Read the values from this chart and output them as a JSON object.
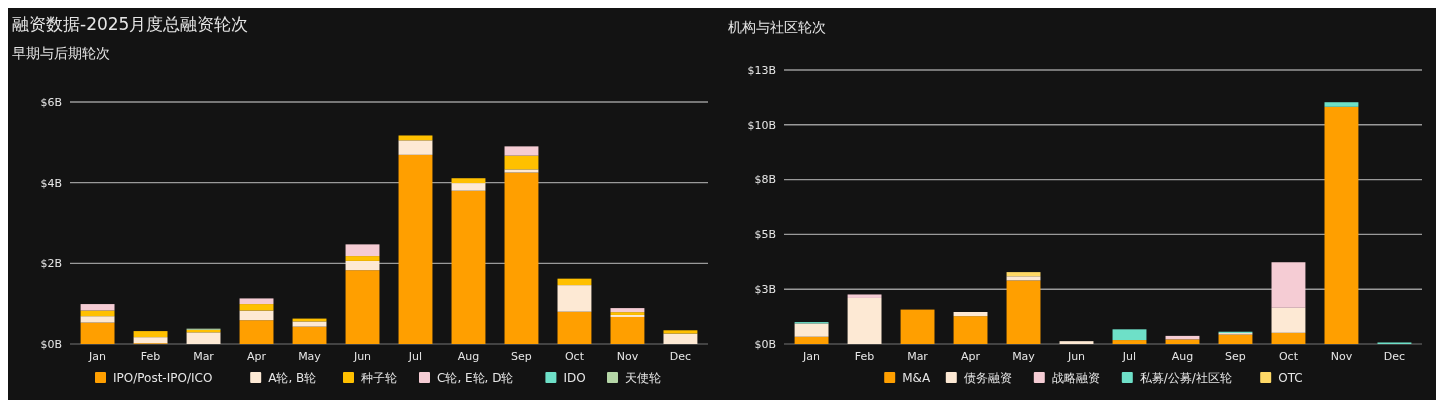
{
  "chart_data": [
    {
      "type": "bar",
      "title": "融资数据-2025月度总融资轮次",
      "subtitle": "早期与后期轮次",
      "categories": [
        "Jan",
        "Feb",
        "Mar",
        "Apr",
        "May",
        "Jun",
        "Jul",
        "Aug",
        "Sep",
        "Oct",
        "Nov",
        "Dec"
      ],
      "stacked": true,
      "ylim": [
        0,
        6
      ],
      "yticks": [
        {
          "value": 0,
          "label": "$0B"
        },
        {
          "value": 2,
          "label": "$2B"
        },
        {
          "value": 4,
          "label": "$4B"
        },
        {
          "value": 6,
          "label": "$6B"
        }
      ],
      "grid": "y",
      "legend": "bottom",
      "series": [
        {
          "name": "IPO/Post-IPO/ICO",
          "color": "#ff9f00",
          "values": [
            0.53,
            0.02,
            0,
            0.59,
            0.43,
            1.83,
            4.69,
            3.8,
            4.25,
            0.8,
            0.67,
            0
          ]
        },
        {
          "name": "A轮, B轮",
          "color": "#fde9d4",
          "values": [
            0.16,
            0.15,
            0.29,
            0.24,
            0.13,
            0.23,
            0.36,
            0.19,
            0.08,
            0.66,
            0.05,
            0.26
          ]
        },
        {
          "name": "种子轮",
          "color": "#ffc000",
          "values": [
            0.14,
            0.15,
            0.06,
            0.16,
            0.07,
            0.12,
            0.12,
            0.12,
            0.34,
            0.16,
            0.07,
            0.08
          ]
        },
        {
          "name": "C轮, E轮, D轮",
          "color": "#f5ccd4",
          "values": [
            0.16,
            0,
            0,
            0.14,
            0,
            0.29,
            0,
            0,
            0.23,
            0,
            0.1,
            0
          ]
        },
        {
          "name": "IDO",
          "color": "#6ee0c8",
          "values": [
            0,
            0,
            0,
            0,
            0,
            0,
            0,
            0,
            0,
            0,
            0,
            0
          ]
        },
        {
          "name": "天使轮",
          "color": "#b5d6a7",
          "values": [
            0,
            0,
            0.03,
            0,
            0,
            0,
            0,
            0,
            0,
            0,
            0,
            0
          ]
        }
      ]
    },
    {
      "type": "bar",
      "title": "机构与社区轮次",
      "categories": [
        "Jan",
        "Feb",
        "Mar",
        "Apr",
        "May",
        "Jun",
        "Jul",
        "Aug",
        "Sep",
        "Oct",
        "Nov",
        "Dec"
      ],
      "stacked": true,
      "ylim": [
        0,
        12.5
      ],
      "yticks": [
        {
          "value": 0,
          "label": "$0B"
        },
        {
          "value": 2.5,
          "label": "$3B"
        },
        {
          "value": 5,
          "label": "$5B"
        },
        {
          "value": 7.5,
          "label": "$8B"
        },
        {
          "value": 10,
          "label": "$10B"
        },
        {
          "value": 12.5,
          "label": "$13B"
        }
      ],
      "grid": "y",
      "legend": "bottom",
      "series": [
        {
          "name": "M&A",
          "color": "#ff9f00",
          "values": [
            0.33,
            0,
            1.57,
            1.27,
            2.9,
            0,
            0.18,
            0.21,
            0.43,
            0.51,
            10.82,
            0
          ]
        },
        {
          "name": "债务融资",
          "color": "#fde9d4",
          "values": [
            0.61,
            2.1,
            0,
            0.19,
            0.19,
            0.13,
            0,
            0,
            0.07,
            1.14,
            0,
            0
          ]
        },
        {
          "name": "战略融资",
          "color": "#f5ccd4",
          "values": [
            0,
            0.16,
            0,
            0,
            0,
            0,
            0,
            0.16,
            0,
            2.08,
            0,
            0
          ]
        },
        {
          "name": "私募/公募/社区轮",
          "color": "#6ee0c8",
          "values": [
            0.06,
            0,
            0,
            0,
            0,
            0,
            0.49,
            0,
            0.06,
            0,
            0.21,
            0.07
          ]
        },
        {
          "name": "OTC",
          "color": "#ffd966",
          "values": [
            0,
            0,
            0,
            0,
            0.19,
            0,
            0,
            0,
            0,
            0,
            0,
            0
          ]
        }
      ]
    }
  ]
}
